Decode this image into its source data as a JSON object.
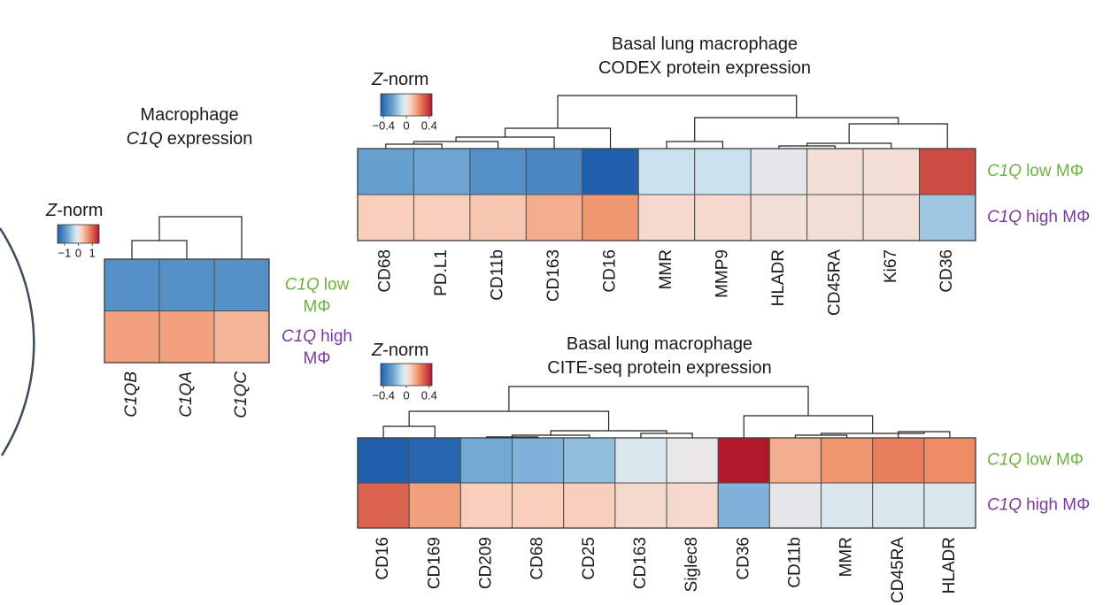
{
  "chart_data": [
    {
      "type": "heatmap",
      "title": [
        [
          {
            "text": "Macrophage"
          }
        ],
        [
          {
            "text": "C1Q",
            "italic": true
          },
          {
            "text": "expression"
          }
        ]
      ],
      "columns": [
        "C1QB",
        "C1QA",
        "C1QC"
      ],
      "column_italic": true,
      "rows": [
        {
          "color": "#6cb33f",
          "lines": [
            [
              {
                "text": "C1Q",
                "italic": true
              },
              {
                "text": "low"
              }
            ],
            [
              {
                "text": "MΦ"
              }
            ]
          ]
        },
        {
          "color": "#7a3a9e",
          "lines": [
            [
              {
                "text": "C1Q",
                "italic": true
              },
              {
                "text": "high"
              }
            ],
            [
              {
                "text": "MΦ"
              }
            ]
          ]
        }
      ],
      "values": [
        [
          -1,
          -1,
          -1
        ],
        [
          0.6,
          0.6,
          0.45
        ]
      ],
      "colorbar": {
        "label": [
          {
            "text": "Z",
            "italic": true
          },
          {
            "text": "-norm"
          }
        ],
        "clim": [
          -1.5,
          1.5
        ],
        "ticks": [
          {
            "value": -1,
            "label": "−1"
          },
          0,
          1
        ]
      }
    },
    {
      "type": "heatmap",
      "title": [
        [
          {
            "text": "Basal lung macrophage"
          }
        ],
        [
          {
            "text": "CODEX protein expression"
          }
        ]
      ],
      "columns": [
        "CD68",
        "PD.L1",
        "CD11b",
        "CD163",
        "CD16",
        "MMR",
        "MMP9",
        "HLADR",
        "CD45RA",
        "Ki67",
        "CD36"
      ],
      "column_italic": false,
      "rows": [
        {
          "color": "#6cb33f",
          "lines": [
            [
              {
                "text": "C1Q",
                "italic": true
              },
              {
                "text": "low MΦ"
              }
            ]
          ]
        },
        {
          "color": "#7a3a9e",
          "lines": [
            [
              {
                "text": "C1Q",
                "italic": true
              },
              {
                "text": "high MΦ"
              }
            ]
          ]
        }
      ],
      "values": [
        [
          -0.25,
          -0.23,
          -0.3,
          -0.33,
          -0.45,
          -0.08,
          -0.08,
          -0.02,
          0.03,
          0.03,
          0.35
        ],
        [
          0.08,
          0.08,
          0.1,
          0.15,
          0.2,
          0.05,
          0.05,
          0.03,
          0.03,
          0.03,
          -0.15
        ]
      ],
      "colorbar": {
        "label": [
          {
            "text": "Z",
            "italic": true
          },
          {
            "text": "-norm"
          }
        ],
        "clim": [
          -0.45,
          0.45
        ],
        "ticks": [
          {
            "value": -0.4,
            "label": "−0.4"
          },
          0,
          0.4
        ]
      }
    },
    {
      "type": "heatmap",
      "title": [
        [
          {
            "text": "Basal lung macrophage"
          }
        ],
        [
          {
            "text": "CITE-seq protein expression"
          }
        ]
      ],
      "columns": [
        "CD16",
        "CD169",
        "CD209",
        "CD68",
        "CD25",
        "CD163",
        "Siglec8",
        "CD36",
        "CD11b",
        "MMR",
        "CD45RA",
        "HLADR"
      ],
      "column_italic": false,
      "rows": [
        {
          "color": "#6cb33f",
          "lines": [
            [
              {
                "text": "C1Q",
                "italic": true
              },
              {
                "text": "low MΦ"
              }
            ]
          ]
        },
        {
          "color": "#7a3a9e",
          "lines": [
            [
              {
                "text": "C1Q",
                "italic": true
              },
              {
                "text": "high MΦ"
              }
            ]
          ]
        }
      ],
      "values": [
        [
          -0.45,
          -0.43,
          -0.22,
          -0.2,
          -0.17,
          -0.05,
          -0.01,
          0.45,
          0.15,
          0.2,
          0.25,
          0.22
        ],
        [
          0.3,
          0.18,
          0.08,
          0.08,
          0.08,
          0.05,
          0.05,
          -0.2,
          -0.02,
          -0.05,
          -0.05,
          -0.05
        ]
      ],
      "colorbar": {
        "label": [
          {
            "text": "Z",
            "italic": true
          },
          {
            "text": "-norm"
          }
        ],
        "clim": [
          -0.45,
          0.45
        ],
        "ticks": [
          {
            "value": -0.4,
            "label": "−0.4"
          },
          0,
          0.4
        ]
      }
    }
  ]
}
